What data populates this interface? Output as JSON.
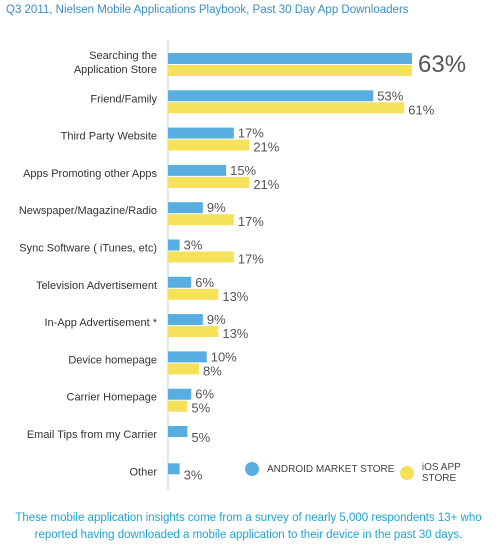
{
  "chart_data": {
    "type": "bar",
    "orientation": "horizontal",
    "title": "Q3 2011, Nielsen Mobile Applications Playbook, Past 30 Day App Downloaders",
    "categories": [
      "Searching the Application Store",
      "Friend/Family",
      "Third Party Website",
      "Apps Promoting other Apps",
      "Newspaper/Magazine/Radio",
      "Sync Software ( iTunes, etc)",
      "Television Advertisement",
      "In-App Advertisement *",
      "Device homepage",
      "Carrier Homepage",
      "Email Tips from my Carrier",
      "Other"
    ],
    "series": [
      {
        "name": "ANDROID MARKET STORE",
        "values": [
          63,
          53,
          17,
          15,
          9,
          3,
          6,
          9,
          10,
          6,
          5,
          3
        ],
        "color": "#58aee0"
      },
      {
        "name": "iOS APP STORE",
        "values": [
          63,
          61,
          21,
          21,
          17,
          17,
          13,
          13,
          8,
          5,
          null,
          null
        ],
        "color": "#f6e15b"
      }
    ],
    "value_labels": [
      [
        "63%"
      ],
      [
        "53%",
        "61%"
      ],
      [
        "17%",
        "21%"
      ],
      [
        "15%",
        "21%"
      ],
      [
        "9%",
        "17%"
      ],
      [
        "3%",
        "17%"
      ],
      [
        "6%",
        "13%"
      ],
      [
        "9%",
        "13%"
      ],
      [
        "10%",
        "8%"
      ],
      [
        "6%",
        "5%"
      ],
      [
        "5%"
      ],
      [
        "3%"
      ]
    ],
    "xlim": [
      0,
      63
    ],
    "legend_position": "bottom-right",
    "grid": false
  },
  "legend": {
    "android": "ANDROID MARKET STORE",
    "ios": "iOS APP STORE"
  },
  "footnote": "These mobile application insights come from a survey of nearly 5,000 respondents 13+ who reported having downloaded a mobile application to their device in the past 30 days.",
  "colors": {
    "android": "#58aee0",
    "ios": "#f6e15b",
    "title": "#3a8fc4",
    "footnote": "#1fa3cf"
  }
}
